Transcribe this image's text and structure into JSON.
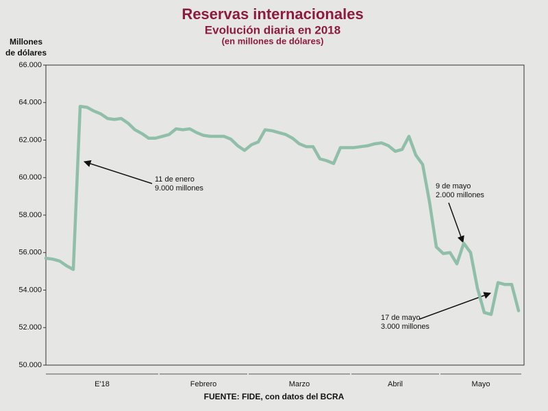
{
  "chart_data": {
    "type": "line",
    "title": "Reservas internacionales",
    "subtitle": "Evolución diaria en 2018",
    "subtitle2": "(en millones de dólares)",
    "ylabel": [
      "Millones",
      "de dólares"
    ],
    "source": "FUENTE: FIDE, con datos del BCRA",
    "ylim": [
      50000,
      66000
    ],
    "yticks": [
      {
        "value": 50000,
        "label": "50.000"
      },
      {
        "value": 52000,
        "label": "52.000"
      },
      {
        "value": 54000,
        "label": "54.000"
      },
      {
        "value": 56000,
        "label": "56.000"
      },
      {
        "value": 58000,
        "label": "58.000"
      },
      {
        "value": 60000,
        "label": "60.000"
      },
      {
        "value": 62000,
        "label": "62.000"
      },
      {
        "value": 64000,
        "label": "64.000"
      },
      {
        "value": 66000,
        "label": "66.000"
      }
    ],
    "categories": [
      "E'18",
      "E'18",
      "E'18",
      "E'18",
      "E'18",
      "E'18",
      "E'18",
      "E'18",
      "E'18",
      "E'18",
      "E'18",
      "E'18",
      "E'18",
      "E'18",
      "E'18",
      "E'18",
      "E'18",
      "Febrero",
      "Febrero",
      "Febrero",
      "Febrero",
      "Febrero",
      "Febrero",
      "Febrero",
      "Febrero",
      "Febrero",
      "Febrero",
      "Febrero",
      "Febrero",
      "Febrero",
      "Marzo",
      "Marzo",
      "Marzo",
      "Marzo",
      "Marzo",
      "Marzo",
      "Marzo",
      "Marzo",
      "Marzo",
      "Marzo",
      "Marzo",
      "Marzo",
      "Marzo",
      "Marzo",
      "Marzo",
      "Abril",
      "Abril",
      "Abril",
      "Abril",
      "Abril",
      "Abril",
      "Abril",
      "Abril",
      "Abril",
      "Abril",
      "Abril",
      "Abril",
      "Abril",
      "Mayo",
      "Mayo",
      "Mayo",
      "Mayo",
      "Mayo",
      "Mayo",
      "Mayo",
      "Mayo",
      "Mayo",
      "Mayo",
      "Mayo",
      "Mayo"
    ],
    "series": [
      {
        "name": "Reservas",
        "color": "#8fbfa9",
        "values": [
          55700,
          55650,
          55550,
          55300,
          55100,
          63800,
          63750,
          63550,
          63400,
          63150,
          63100,
          63150,
          62900,
          62550,
          62350,
          62100,
          62100,
          62200,
          62300,
          62600,
          62550,
          62600,
          62400,
          62250,
          62200,
          62200,
          62200,
          62050,
          61700,
          61450,
          61750,
          61900,
          62550,
          62500,
          62400,
          62300,
          62100,
          61800,
          61650,
          61650,
          61000,
          60900,
          60750,
          61600,
          61600,
          61600,
          61650,
          61700,
          61800,
          61850,
          61700,
          61400,
          61500,
          62200,
          61200,
          60700,
          58700,
          56300,
          55950,
          56000,
          55400,
          56500,
          56000,
          54100,
          52800,
          52700,
          54400,
          54300,
          54300,
          52900
        ]
      }
    ],
    "annotations": [
      {
        "lines": [
          "11 de enero",
          "9.000 millones"
        ]
      },
      {
        "lines": [
          "9 de mayo",
          "2.000 millones"
        ]
      },
      {
        "lines": [
          "17 de mayo",
          "3.000 millones"
        ]
      }
    ]
  }
}
